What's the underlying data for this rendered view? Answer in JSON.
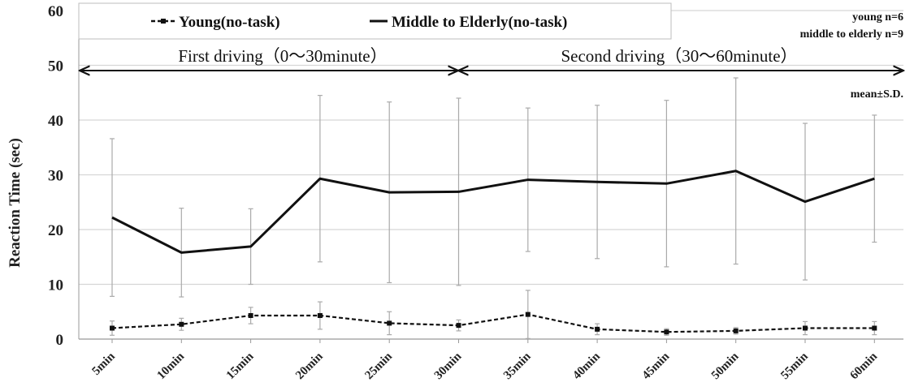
{
  "chart_data": {
    "type": "line",
    "title": "",
    "xlabel": "",
    "ylabel": "Reaction Time (sec)",
    "ylim": [
      0,
      60
    ],
    "yticks": [
      0,
      10,
      20,
      30,
      40,
      50,
      60
    ],
    "grid": true,
    "legend_placement": "top-left",
    "categories": [
      "5min",
      "10min",
      "15min",
      "20min",
      "25min",
      "30min",
      "35min",
      "40min",
      "45min",
      "50min",
      "55min",
      "60min"
    ],
    "series": [
      {
        "name": "Young(no-task)",
        "style": "dashed",
        "values": [
          2.0,
          2.7,
          4.3,
          4.3,
          2.9,
          2.5,
          4.5,
          1.8,
          1.3,
          1.5,
          2.0,
          2.0
        ],
        "error": [
          1.3,
          1.1,
          1.5,
          2.5,
          2.1,
          1.0,
          4.4,
          1.0,
          0.6,
          0.6,
          1.2,
          1.2
        ]
      },
      {
        "name": "Middle to Elderly(no-task)",
        "style": "solid",
        "values": [
          22.2,
          15.8,
          16.9,
          29.3,
          26.8,
          26.9,
          29.1,
          28.7,
          28.4,
          30.7,
          25.1,
          29.3
        ],
        "error": [
          14.4,
          8.1,
          6.9,
          15.2,
          16.5,
          17.1,
          13.1,
          14.0,
          15.2,
          17.0,
          14.3,
          11.6
        ]
      }
    ],
    "annotations": {
      "sample_size": [
        "young n=6",
        "middle to elderly n=9"
      ],
      "stat_note": "mean±S.D.",
      "phase_1": "First driving（0～30minute）",
      "phase_2": "Second driving（30～60minute）"
    },
    "colors": {
      "line": "#111111",
      "errorbar": "#aaaaaa",
      "grid": "#d6d6d6"
    }
  }
}
